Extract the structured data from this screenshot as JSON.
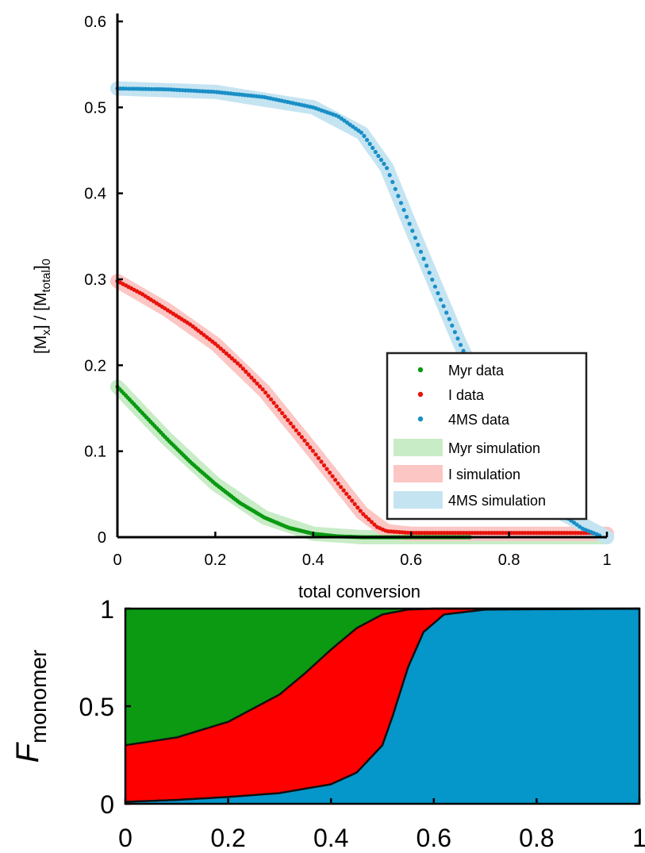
{
  "chart_data": [
    {
      "type": "scatter",
      "xlabel": "total conversion",
      "ylabel": {
        "text": "[M",
        "sub1": "x",
        "mid": "] / [M",
        "sub2": "total",
        "end": "]",
        "sub3": "0"
      },
      "xlim": [
        0,
        1
      ],
      "ylim": [
        0,
        0.6
      ],
      "xticks": [
        "0",
        "0.2",
        "0.4",
        "0.6",
        "0.8",
        "1"
      ],
      "yticks": [
        "0",
        "0.1",
        "0.2",
        "0.3",
        "0.4",
        "0.5",
        "0.6"
      ],
      "grid": false,
      "legend_position": "lower-right",
      "series": [
        {
          "name": "Myr data",
          "kind": "points",
          "color": "#0a9a12",
          "x_range": [
            0,
            0.72
          ],
          "points": [
            [
              0,
              0.175
            ],
            [
              0.05,
              0.145
            ],
            [
              0.1,
              0.115
            ],
            [
              0.15,
              0.087
            ],
            [
              0.2,
              0.062
            ],
            [
              0.25,
              0.04
            ],
            [
              0.3,
              0.023
            ],
            [
              0.35,
              0.011
            ],
            [
              0.4,
              0.004
            ],
            [
              0.45,
              0.001
            ],
            [
              0.5,
              0.0
            ],
            [
              0.6,
              0.0
            ],
            [
              0.72,
              0.0
            ]
          ]
        },
        {
          "name": "I data",
          "kind": "points",
          "color": "#e8140c",
          "x_range": [
            0,
            0.97
          ],
          "points": [
            [
              0,
              0.298
            ],
            [
              0.05,
              0.283
            ],
            [
              0.1,
              0.265
            ],
            [
              0.15,
              0.247
            ],
            [
              0.2,
              0.225
            ],
            [
              0.25,
              0.2
            ],
            [
              0.3,
              0.17
            ],
            [
              0.35,
              0.135
            ],
            [
              0.4,
              0.1
            ],
            [
              0.45,
              0.063
            ],
            [
              0.5,
              0.028
            ],
            [
              0.53,
              0.012
            ],
            [
              0.55,
              0.007
            ],
            [
              0.6,
              0.005
            ],
            [
              0.7,
              0.005
            ],
            [
              0.8,
              0.005
            ],
            [
              0.97,
              0.005
            ]
          ]
        },
        {
          "name": "4MS data",
          "kind": "points",
          "color": "#1a8fc6",
          "x_range": [
            0,
            0.985
          ],
          "points": [
            [
              0,
              0.522
            ],
            [
              0.1,
              0.521
            ],
            [
              0.2,
              0.518
            ],
            [
              0.3,
              0.512
            ],
            [
              0.4,
              0.5
            ],
            [
              0.45,
              0.49
            ],
            [
              0.5,
              0.47
            ],
            [
              0.55,
              0.43
            ],
            [
              0.6,
              0.36
            ],
            [
              0.65,
              0.29
            ],
            [
              0.7,
              0.225
            ],
            [
              0.75,
              0.165
            ],
            [
              0.8,
              0.105
            ],
            [
              0.85,
              0.06
            ],
            [
              0.9,
              0.03
            ],
            [
              0.95,
              0.01
            ],
            [
              0.985,
              0.002
            ]
          ]
        },
        {
          "name": "Myr simulation",
          "kind": "band",
          "color": "#c8ecc6",
          "points": [
            [
              0,
              0.175
            ],
            [
              0.1,
              0.115
            ],
            [
              0.2,
              0.062
            ],
            [
              0.3,
              0.023
            ],
            [
              0.4,
              0.004
            ],
            [
              0.5,
              0.0
            ],
            [
              1,
              0.0
            ]
          ]
        },
        {
          "name": "I simulation",
          "kind": "band",
          "color": "#fbc6c3",
          "points": [
            [
              0,
              0.298
            ],
            [
              0.1,
              0.265
            ],
            [
              0.2,
              0.225
            ],
            [
              0.3,
              0.17
            ],
            [
              0.4,
              0.1
            ],
            [
              0.5,
              0.028
            ],
            [
              0.55,
              0.007
            ],
            [
              0.6,
              0.004
            ],
            [
              1,
              0.004
            ]
          ]
        },
        {
          "name": "4MS simulation",
          "kind": "band",
          "color": "#c5e4f2",
          "points": [
            [
              0,
              0.522
            ],
            [
              0.2,
              0.518
            ],
            [
              0.4,
              0.5
            ],
            [
              0.5,
              0.47
            ],
            [
              0.55,
              0.43
            ],
            [
              0.6,
              0.36
            ],
            [
              0.7,
              0.225
            ],
            [
              0.8,
              0.105
            ],
            [
              0.9,
              0.03
            ],
            [
              1,
              0.0
            ]
          ]
        }
      ]
    },
    {
      "type": "area",
      "stacked": true,
      "ylabel": {
        "main": "F",
        "sub": "monomer"
      },
      "xlim": [
        0,
        1
      ],
      "ylim": [
        0,
        1
      ],
      "xticks": [
        "0",
        "0.2",
        "0.4",
        "0.6",
        "0.8",
        "1"
      ],
      "yticks": [
        "0",
        "0.5",
        "1"
      ],
      "grid": false,
      "layers": [
        {
          "color": "#0b9a12",
          "lower_curve": "I-top",
          "upper_curve": "top"
        },
        {
          "color": "#ff0000",
          "lower_curve": "4MS-top",
          "upper_curve": "I-top"
        },
        {
          "color": "#0596ca",
          "lower_curve": "bottom",
          "upper_curve": "4MS-top"
        }
      ],
      "curves": {
        "I-top": [
          [
            0,
            0.3
          ],
          [
            0.1,
            0.34
          ],
          [
            0.2,
            0.42
          ],
          [
            0.3,
            0.56
          ],
          [
            0.35,
            0.67
          ],
          [
            0.4,
            0.79
          ],
          [
            0.45,
            0.9
          ],
          [
            0.5,
            0.97
          ],
          [
            0.55,
            0.995
          ],
          [
            0.6,
            1.0
          ],
          [
            1,
            1.0
          ]
        ],
        "4MS-top": [
          [
            0,
            0.01
          ],
          [
            0.1,
            0.02
          ],
          [
            0.2,
            0.035
          ],
          [
            0.3,
            0.055
          ],
          [
            0.4,
            0.1
          ],
          [
            0.45,
            0.16
          ],
          [
            0.5,
            0.3
          ],
          [
            0.52,
            0.45
          ],
          [
            0.55,
            0.7
          ],
          [
            0.58,
            0.88
          ],
          [
            0.62,
            0.97
          ],
          [
            0.7,
            0.995
          ],
          [
            1,
            1.0
          ]
        ]
      }
    }
  ]
}
